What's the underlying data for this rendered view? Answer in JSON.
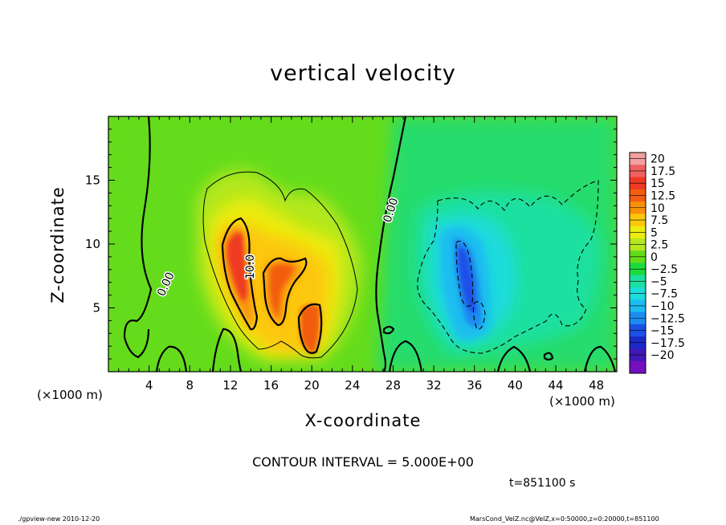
{
  "chart_data": {
    "type": "heatmap",
    "title": "vertical velocity",
    "xlabel": "X-coordinate",
    "ylabel": "Z-coordinate",
    "x_unit_label": "(×1000 m)",
    "xlim": [
      0,
      50
    ],
    "ylim": [
      0,
      20
    ],
    "x_ticks": [
      4,
      8,
      12,
      16,
      20,
      24,
      28,
      32,
      36,
      40,
      44,
      48
    ],
    "y_ticks": [
      5,
      10,
      15
    ],
    "colorbar": {
      "labels": [
        "20",
        "17.5",
        "15",
        "12.5",
        "10",
        "7.5",
        "5",
        "2.5",
        "0",
        "−2.5",
        "−5",
        "−7.5",
        "−10",
        "−12.5",
        "−15",
        "−17.5",
        "−20"
      ],
      "values": [
        20,
        17.5,
        15,
        12.5,
        10,
        7.5,
        5,
        2.5,
        0,
        -2.5,
        -5,
        -7.5,
        -10,
        -12.5,
        -15,
        -17.5,
        -20
      ],
      "colors": [
        "#f4a0a0",
        "#f06060",
        "#ee3a24",
        "#f25d10",
        "#f8900a",
        "#fcc80a",
        "#ecec10",
        "#b4e81c",
        "#64dc1c",
        "#1cdc3c",
        "#1ce0a0",
        "#1cdcdc",
        "#1cbcf0",
        "#1c8cf0",
        "#1c50e8",
        "#1c28c8",
        "#4018b8",
        "#7410c0"
      ]
    },
    "contour_labels": [
      "0.00",
      "10.0",
      "0.00"
    ],
    "contour_interval_text": "CONTOUR INTERVAL = 5.000E+00",
    "time_text": "t=851100 s",
    "features": [
      {
        "name": "updraft core",
        "x_range": [
          11,
          15
        ],
        "z_range": [
          3,
          12
        ],
        "max": 12
      },
      {
        "name": "updraft",
        "x_range": [
          15,
          19
        ],
        "z_range": [
          3,
          9
        ],
        "max": 11
      },
      {
        "name": "updraft",
        "x_range": [
          19,
          21
        ],
        "z_range": [
          1.5,
          5
        ],
        "max": 11
      },
      {
        "name": "downdraft core",
        "x_range": [
          33,
          37
        ],
        "z_range": [
          2,
          10.5
        ],
        "min": -11
      }
    ]
  },
  "footer": {
    "left": "./gpview-new  2010-12-20",
    "right": "MarsCond_VelZ.nc@VelZ,x=0:50000,z=0:20000,t=851100"
  }
}
